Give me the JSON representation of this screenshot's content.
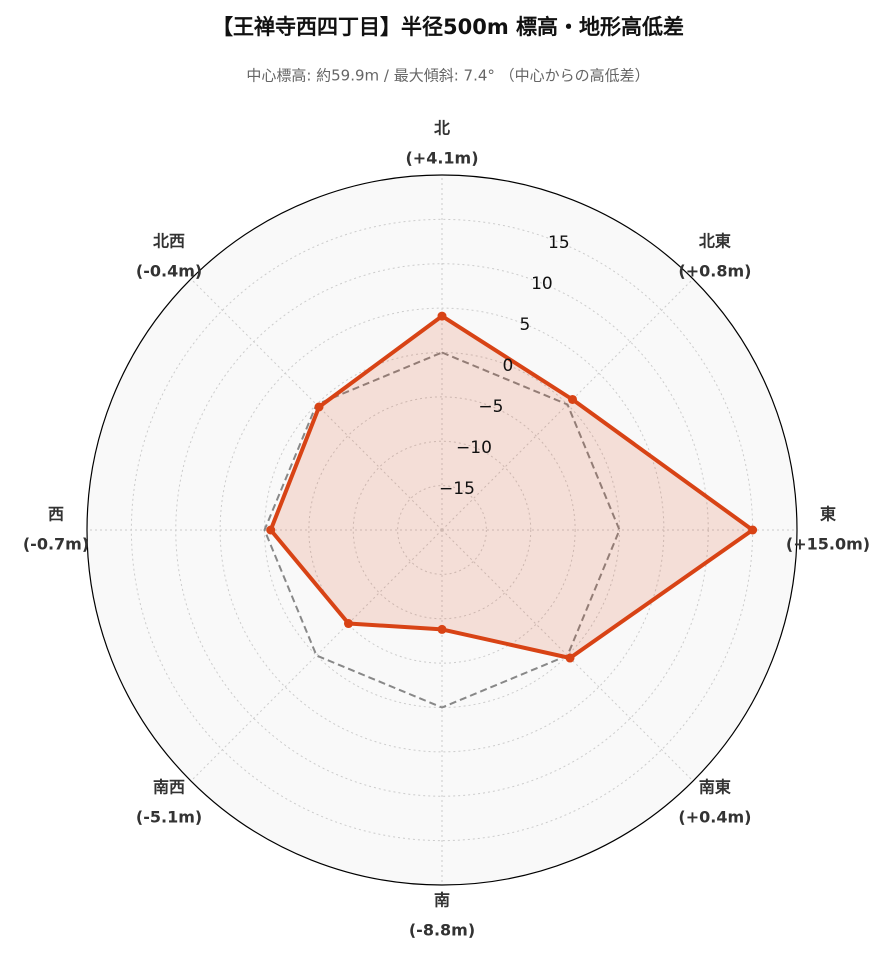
{
  "chart_data": {
    "type": "radar",
    "title": "【王禅寺西四丁目】半径500m 標高・地形高低差",
    "subtitle": "中心標高: 約59.9m / 最大傾斜: 7.4° （中心からの高低差）",
    "categories": [
      "北",
      "北東",
      "東",
      "南東",
      "南",
      "南西",
      "西",
      "北西"
    ],
    "series": [
      {
        "color": "#d84315",
        "values": [
          4.1,
          0.8,
          15.0,
          0.4,
          -8.8,
          -5.1,
          -0.7,
          -0.4
        ],
        "value_labels": [
          "(+4.1m)",
          "(+0.8m)",
          "(+15.0m)",
          "(+0.4m)",
          "(-8.8m)",
          "(-5.1m)",
          "(-0.7m)",
          "(-0.4m)"
        ]
      },
      {
        "color": "#888888",
        "dash": true,
        "values": [
          0,
          0,
          0,
          0,
          0,
          0,
          0,
          0
        ]
      }
    ],
    "ylim": [
      -20,
      20
    ],
    "yticks": [
      {
        "value": -15,
        "label": "−15"
      },
      {
        "value": -10,
        "label": "−10"
      },
      {
        "value": -5,
        "label": "−5"
      },
      0,
      5,
      10,
      15
    ],
    "grid": true
  }
}
